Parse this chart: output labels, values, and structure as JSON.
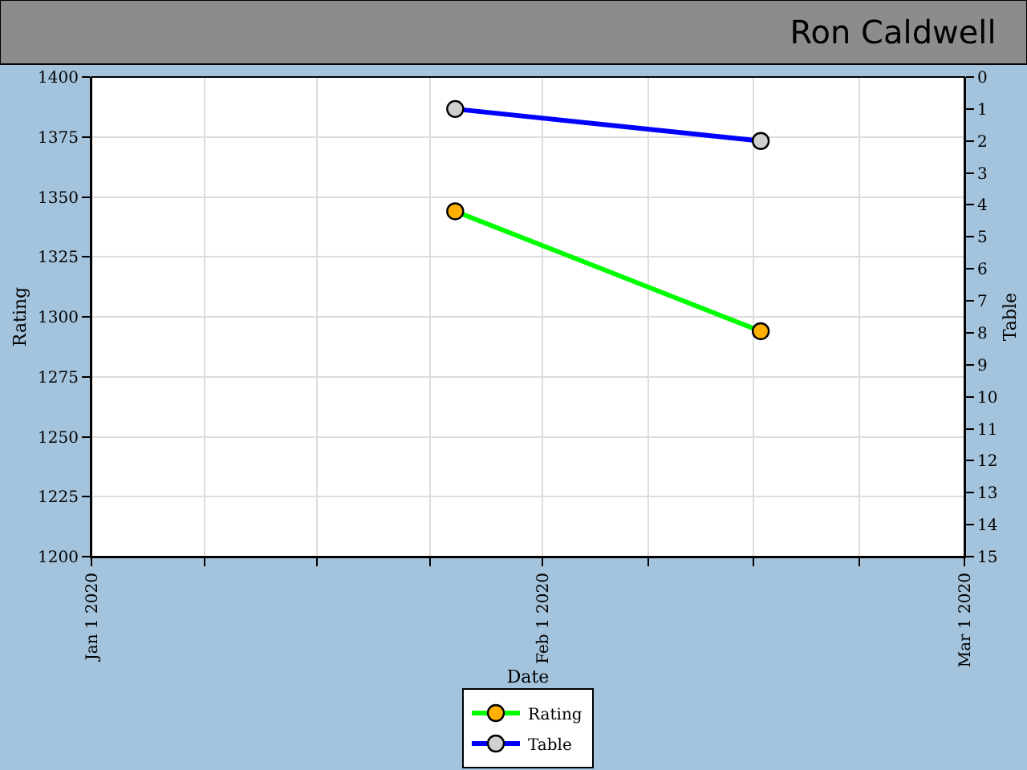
{
  "chart_data": {
    "type": "line",
    "title": "Ron Caldwell",
    "xlabel": "Date",
    "ylabel": "Rating",
    "y2label": "Table",
    "x": [
      "2020-01-26",
      "2020-02-16"
    ],
    "series": [
      {
        "name": "Rating",
        "color": "#00ff00",
        "colors": [
          "#ffb000",
          "#ffb000"
        ],
        "values": [
          1344,
          1294
        ]
      },
      {
        "name": "Table",
        "color": "#0000ff",
        "colors": [
          "#d0d0d0",
          "#d0d0d0"
        ],
        "values": [
          1,
          2
        ],
        "axis": "y2"
      }
    ],
    "xlim": [
      "2020-01-01",
      "2020-03-01"
    ],
    "xticks": [
      {
        "value": "2020-01-01",
        "label": "Jan 1 2020"
      },
      {
        "value": "2020-01-08T18:00",
        "label": null
      },
      {
        "value": "2020-01-16T12:00",
        "label": null
      },
      {
        "value": "2020-01-24T06:00",
        "label": null
      },
      {
        "value": "2020-02-01",
        "label": "Feb 1 2020"
      },
      {
        "value": "2020-02-08T06:00",
        "label": null
      },
      {
        "value": "2020-02-15T12:00",
        "label": null
      },
      {
        "value": "2020-02-22T18:00",
        "label": null
      },
      {
        "value": "2020-03-01",
        "label": "Mar 1 2020"
      }
    ],
    "ylim": [
      1200,
      1400
    ],
    "yticks": [
      1200,
      1225,
      1250,
      1275,
      1300,
      1325,
      1350,
      1375,
      1400
    ],
    "y2lim": [
      15,
      0
    ],
    "y2ticks": [
      0,
      1,
      2,
      3,
      4,
      5,
      6,
      7,
      8,
      9,
      10,
      11,
      12,
      13,
      14,
      15
    ],
    "grid": true,
    "legend": "bottom",
    "marker": "circle",
    "line_style": "solid"
  }
}
